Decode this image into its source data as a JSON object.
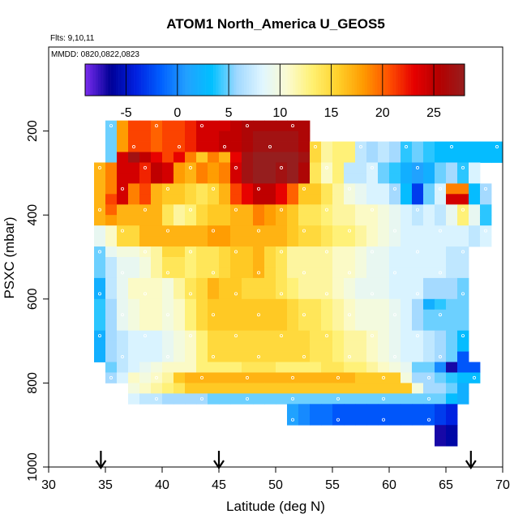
{
  "chart_data": {
    "type": "heatmap",
    "title": "ATOM1 North_America U_GEOS5",
    "annotations": [
      "Flts: 9,10,11",
      "MMDD: 0820,0822,0823"
    ],
    "xlabel": "Latitude (deg N)",
    "ylabel": "PSXC (mbar)",
    "xlim": [
      30,
      70
    ],
    "ylim": [
      1000,
      0
    ],
    "y_reversed": true,
    "xticks": [
      30,
      35,
      40,
      45,
      50,
      55,
      60,
      65,
      70
    ],
    "yticks": [
      200,
      400,
      600,
      800,
      1000
    ],
    "colorbar": {
      "range": [
        -9,
        28
      ],
      "ticks": [
        -5,
        0,
        5,
        10,
        15,
        20,
        25
      ],
      "colors": [
        "#7b2cf0",
        "#000096",
        "#0020e0",
        "#0060ff",
        "#22a0ff",
        "#00c0ff",
        "#a0d8ff",
        "#e0f6ff",
        "#fbfbd0",
        "#fff070",
        "#ffd02a",
        "#ff9a00",
        "#ff5000",
        "#e60000",
        "#b40000",
        "#961e1e"
      ]
    },
    "cell_size": {
      "lat": 1,
      "pressure_mbar": 25
    },
    "rows": [
      {
        "p": 187.5,
        "lat0": 35,
        "values": [
          5,
          18,
          21,
          21,
          20,
          21,
          21,
          22,
          24,
          24,
          24,
          25,
          26,
          26,
          26,
          26,
          26,
          26
        ]
      },
      {
        "p": 212.5,
        "lat0": 35,
        "values": [
          5,
          18,
          21,
          21,
          20,
          21,
          21,
          22,
          24,
          24,
          25,
          25,
          26,
          27,
          27,
          27,
          27,
          26
        ]
      },
      {
        "p": 237.5,
        "lat0": 35,
        "values": [
          5,
          18,
          21,
          21,
          20,
          21,
          21,
          22,
          24,
          24,
          25,
          25,
          26,
          27,
          27,
          27,
          27,
          26,
          15,
          12,
          13,
          13,
          7,
          6,
          7,
          6,
          4,
          5,
          4,
          3,
          3,
          3,
          3,
          3,
          3
        ]
      },
      {
        "p": 262.5,
        "lat0": 35,
        "values": [
          5,
          24,
          27,
          25,
          23,
          21,
          23,
          19,
          16,
          19,
          17,
          23,
          27,
          29,
          28,
          29,
          28,
          27,
          15,
          12,
          13,
          13,
          7,
          6,
          7,
          6,
          4,
          5,
          4,
          3,
          3,
          3,
          3,
          3,
          3
        ]
      },
      {
        "p": 287.5,
        "lat0": 34,
        "values": [
          17,
          19,
          24,
          24,
          22,
          25,
          24,
          18,
          17,
          19,
          18,
          19,
          24,
          27,
          28,
          28,
          27,
          28,
          26,
          14,
          11,
          13,
          7,
          7,
          8,
          5,
          4,
          2,
          1,
          2,
          5,
          6,
          4,
          8
        ]
      },
      {
        "p": 312.5,
        "lat0": 34,
        "values": [
          17,
          19,
          24,
          24,
          22,
          25,
          24,
          18,
          17,
          19,
          18,
          19,
          24,
          27,
          28,
          28,
          27,
          28,
          26,
          14,
          11,
          13,
          7,
          7,
          8,
          5,
          4,
          2,
          1,
          2,
          5,
          6,
          4,
          8
        ]
      },
      {
        "p": 337.5,
        "lat0": 34,
        "values": [
          17,
          19,
          24,
          19,
          21,
          17,
          16,
          16,
          15,
          14,
          15,
          17,
          21,
          23,
          25,
          25,
          23,
          20,
          16,
          16,
          14,
          12,
          10,
          9,
          8,
          8,
          6,
          3,
          -3,
          5,
          8,
          19,
          19,
          3,
          6
        ]
      },
      {
        "p": 362.5,
        "lat0": 34,
        "values": [
          17,
          21,
          24,
          19,
          21,
          17,
          16,
          16,
          15,
          14,
          15,
          17,
          21,
          23,
          25,
          25,
          23,
          20,
          16,
          16,
          14,
          12,
          10,
          9,
          8,
          8,
          6,
          3,
          -3,
          5,
          8,
          24,
          24,
          3,
          6
        ]
      },
      {
        "p": 387.5,
        "lat0": 34,
        "values": [
          17,
          20,
          17,
          17,
          17,
          17,
          14,
          12,
          13,
          15,
          16,
          16,
          17,
          17,
          19,
          18,
          17,
          16,
          14,
          14,
          13,
          12,
          12,
          11,
          11,
          10,
          9,
          8,
          7,
          8,
          7,
          9,
          13,
          9,
          4
        ]
      },
      {
        "p": 412.5,
        "lat0": 34,
        "values": [
          17,
          18,
          17,
          17,
          17,
          17,
          14,
          12,
          13,
          15,
          16,
          16,
          17,
          17,
          19,
          18,
          17,
          16,
          14,
          14,
          13,
          12,
          12,
          11,
          11,
          10,
          9,
          8,
          7,
          8,
          7,
          9,
          13,
          9,
          4
        ]
      },
      {
        "p": 437.5,
        "lat0": 34,
        "values": [
          9,
          11,
          15,
          15,
          17,
          17,
          17,
          17,
          17,
          17,
          18,
          18,
          17,
          17,
          17,
          17,
          17,
          16,
          15,
          15,
          14,
          13,
          13,
          12,
          11,
          10,
          9,
          8,
          8,
          8,
          8,
          8,
          8,
          7,
          8
        ]
      },
      {
        "p": 462.5,
        "lat0": 34,
        "values": [
          9,
          11,
          15,
          15,
          17,
          17,
          17,
          17,
          17,
          17,
          18,
          18,
          17,
          17,
          17,
          17,
          17,
          16,
          15,
          15,
          14,
          13,
          13,
          12,
          11,
          10,
          9,
          8,
          8,
          8,
          8,
          8,
          8,
          7,
          8
        ]
      },
      {
        "p": 487.5,
        "lat0": 34,
        "values": [
          5,
          9,
          10,
          10,
          11,
          12,
          15,
          15,
          13,
          14,
          14,
          15,
          16,
          16,
          17,
          15,
          14,
          12,
          12,
          12,
          12,
          11,
          11,
          10,
          9,
          9,
          8,
          8,
          8,
          8,
          8,
          7,
          7
        ]
      },
      {
        "p": 512.5,
        "lat0": 34,
        "values": [
          5,
          7,
          9,
          9,
          10,
          12,
          14,
          14,
          13,
          14,
          14,
          15,
          16,
          16,
          17,
          15,
          14,
          12,
          12,
          12,
          12,
          11,
          11,
          10,
          9,
          9,
          8,
          8,
          8,
          8,
          8,
          7,
          7
        ]
      },
      {
        "p": 537.5,
        "lat0": 34,
        "values": [
          5,
          7,
          9,
          9,
          10,
          12,
          14,
          14,
          13,
          14,
          14,
          15,
          16,
          16,
          17,
          15,
          14,
          12,
          12,
          12,
          12,
          11,
          11,
          10,
          9,
          9,
          8,
          8,
          8,
          8,
          8,
          7,
          7
        ]
      },
      {
        "p": 562.5,
        "lat0": 34,
        "values": [
          2,
          7,
          9,
          11,
          11,
          11,
          10,
          12,
          14,
          15,
          17,
          16,
          16,
          15,
          15,
          15,
          14,
          13,
          12,
          12,
          12,
          11,
          10,
          9,
          9,
          9,
          8,
          8,
          8,
          6,
          6,
          6,
          5
        ]
      },
      {
        "p": 587.5,
        "lat0": 34,
        "values": [
          2,
          7,
          9,
          11,
          11,
          11,
          10,
          12,
          14,
          15,
          17,
          16,
          16,
          15,
          15,
          15,
          14,
          13,
          12,
          12,
          12,
          11,
          10,
          9,
          9,
          9,
          8,
          8,
          8,
          6,
          6,
          6,
          5
        ]
      },
      {
        "p": 612.5,
        "lat0": 34,
        "values": [
          4,
          6,
          9,
          10,
          11,
          11,
          10,
          11,
          13,
          15,
          16,
          16,
          16,
          16,
          16,
          16,
          16,
          15,
          14,
          14,
          13,
          12,
          11,
          10,
          10,
          10,
          9,
          8,
          6,
          2,
          4,
          5,
          5
        ]
      },
      {
        "p": 637.5,
        "lat0": 34,
        "values": [
          4,
          6,
          9,
          10,
          11,
          11,
          10,
          11,
          13,
          15,
          16,
          16,
          16,
          16,
          16,
          16,
          16,
          15,
          14,
          14,
          13,
          12,
          11,
          10,
          10,
          10,
          9,
          8,
          6,
          5,
          5,
          5,
          5
        ]
      },
      {
        "p": 662.5,
        "lat0": 34,
        "values": [
          4,
          6,
          9,
          10,
          11,
          11,
          10,
          11,
          13,
          15,
          16,
          16,
          16,
          16,
          16,
          16,
          16,
          15,
          14,
          14,
          13,
          12,
          11,
          10,
          10,
          10,
          9,
          8,
          6,
          5,
          5,
          5,
          5
        ]
      },
      {
        "p": 687.5,
        "lat0": 34,
        "values": [
          2,
          6,
          7,
          8,
          8,
          8,
          9,
          10,
          11,
          13,
          15,
          15,
          15,
          15,
          15,
          15,
          15,
          15,
          15,
          14,
          14,
          13,
          12,
          12,
          11,
          10,
          9,
          8,
          8,
          7,
          6,
          5,
          3
        ]
      },
      {
        "p": 712.5,
        "lat0": 34,
        "values": [
          2,
          6,
          7,
          8,
          8,
          8,
          9,
          10,
          11,
          13,
          15,
          15,
          15,
          15,
          15,
          15,
          15,
          15,
          15,
          14,
          14,
          13,
          12,
          12,
          11,
          10,
          9,
          8,
          8,
          7,
          6,
          5,
          3
        ]
      },
      {
        "p": 737.5,
        "lat0": 34,
        "values": [
          2,
          6,
          7,
          8,
          8,
          8,
          9,
          10,
          11,
          13,
          15,
          15,
          15,
          15,
          15,
          15,
          15,
          15,
          15,
          14,
          14,
          13,
          12,
          12,
          11,
          10,
          9,
          8,
          8,
          7,
          6,
          5,
          -2
        ]
      },
      {
        "p": 762.5,
        "lat0": 35,
        "values": [
          5,
          7,
          8,
          9,
          10,
          11,
          11,
          11,
          13,
          13,
          13,
          13,
          14,
          14,
          14,
          13,
          13,
          13,
          13,
          14,
          14,
          13,
          13,
          12,
          11,
          10,
          9,
          5,
          5,
          0,
          -7,
          -2,
          -2
        ]
      },
      {
        "p": 787.5,
        "lat0": 35,
        "values": [
          6,
          8,
          11,
          10,
          11,
          12,
          16,
          17,
          17,
          17,
          17,
          17,
          17,
          17,
          17,
          17,
          17,
          17,
          17,
          17,
          17,
          17,
          16,
          16,
          16,
          16,
          10,
          6,
          6,
          5,
          4,
          3,
          3
        ]
      },
      {
        "p": 812.5,
        "lat0": 37,
        "values": [
          10,
          11,
          12,
          13,
          14,
          16,
          16,
          16,
          16,
          16,
          16,
          16,
          16,
          16,
          16,
          16,
          16,
          16,
          16,
          16,
          16,
          16,
          16,
          16,
          16,
          10,
          6,
          6,
          5,
          2
        ]
      },
      {
        "p": 837.5,
        "lat0": 37,
        "values": [
          8,
          7,
          7,
          6,
          6,
          6,
          6,
          5,
          5,
          5,
          5,
          5,
          5,
          5,
          5,
          5,
          5,
          5,
          5,
          5,
          5,
          5,
          5,
          5,
          5,
          5,
          5,
          5,
          3,
          2
        ]
      },
      {
        "p": 862.5,
        "lat0": 51,
        "values": [
          1,
          0,
          -1,
          -1,
          -2,
          -2,
          -2,
          -2,
          -2,
          -2,
          -2,
          -2,
          -2,
          -3,
          -4
        ]
      },
      {
        "p": 887.5,
        "lat0": 51,
        "values": [
          1,
          0,
          -1,
          -1,
          -2,
          -2,
          -2,
          -2,
          -2,
          -2,
          -2,
          -2,
          -2,
          -3,
          -4
        ]
      },
      {
        "p": 912.5,
        "lat0": 64,
        "values": [
          -7,
          -6
        ]
      },
      {
        "p": 937.5,
        "lat0": 64,
        "values": [
          -7,
          -6
        ]
      }
    ],
    "flight_markers_lat": [
      34.6,
      45.0,
      67.2
    ]
  }
}
